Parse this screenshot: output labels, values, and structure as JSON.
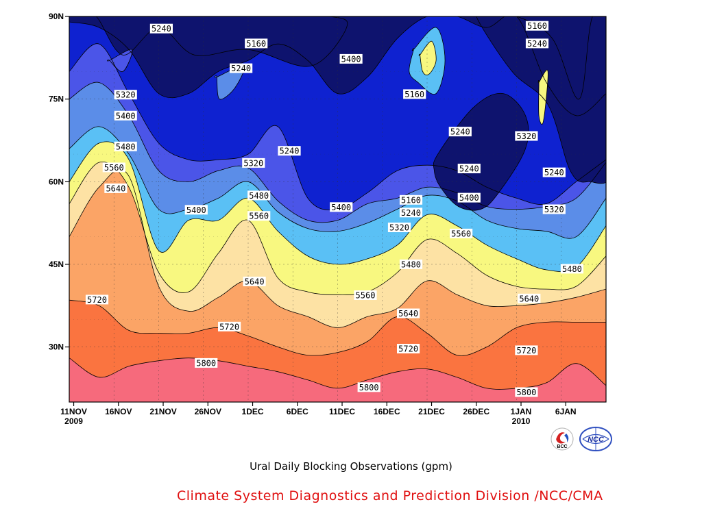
{
  "chart_data": {
    "type": "heatmap",
    "subtype": "filled-contour",
    "title": "Ural Daily Blocking Observations (gpm)",
    "credit": "Climate System Diagnostics and Prediction Division /NCC/CMA",
    "credit_color": "#e01010",
    "x_ticks": [
      {
        "label": "11NOV",
        "sub": "2009"
      },
      {
        "label": "16NOV",
        "sub": ""
      },
      {
        "label": "21NOV",
        "sub": ""
      },
      {
        "label": "26NOV",
        "sub": ""
      },
      {
        "label": "1DEC",
        "sub": ""
      },
      {
        "label": "6DEC",
        "sub": ""
      },
      {
        "label": "11DEC",
        "sub": ""
      },
      {
        "label": "16DEC",
        "sub": ""
      },
      {
        "label": "21DEC",
        "sub": ""
      },
      {
        "label": "26DEC",
        "sub": ""
      },
      {
        "label": "1JAN",
        "sub": "2010"
      },
      {
        "label": "6JAN",
        "sub": ""
      }
    ],
    "y_ticks": [
      {
        "lat": 90,
        "label": "90N"
      },
      {
        "lat": 75,
        "label": "75N"
      },
      {
        "lat": 60,
        "label": "60N"
      },
      {
        "lat": 45,
        "label": "45N"
      },
      {
        "lat": 30,
        "label": "30N"
      }
    ],
    "xlim_days": [
      0,
      60
    ],
    "ylim_lat": [
      20,
      90
    ],
    "grid": true,
    "levels": [
      5160,
      5240,
      5320,
      5400,
      5480,
      5560,
      5640,
      5720,
      5800
    ],
    "colors": [
      "#0e136e",
      "#0f22d0",
      "#4b55e8",
      "#5b8de8",
      "#5ac0f5",
      "#f8f880",
      "#fde2a4",
      "#fba466",
      "#fa7440",
      "#f66a7c"
    ],
    "bands": [
      {
        "upper": 5800,
        "lats": [
          28,
          24.5,
          26.5,
          27.5,
          28,
          27.5,
          26.5,
          25.5,
          24,
          22.5,
          24,
          25.5,
          26,
          24.5,
          22.5,
          22.5,
          23.5,
          27,
          23
        ]
      },
      {
        "upper": 5720,
        "lats": [
          38.5,
          37.5,
          33,
          32.5,
          32.5,
          33.5,
          32,
          30,
          28.5,
          29,
          31,
          35.5,
          32.5,
          28.5,
          30,
          33.5,
          34.5,
          34.5,
          34.5
        ]
      },
      {
        "upper": 5640,
        "lats": [
          50,
          59,
          61,
          41,
          36.5,
          39,
          42,
          37.5,
          35.5,
          33.5,
          35.5,
          37,
          42,
          39.5,
          37.5,
          37.5,
          38,
          39,
          40.5
        ]
      },
      {
        "upper": 5560,
        "lats": [
          56,
          63.5,
          59,
          43.5,
          40,
          47,
          53,
          42.5,
          40,
          39.5,
          40,
          43.5,
          49.5,
          47,
          43,
          41,
          40.5,
          41,
          46.5
        ]
      },
      {
        "upper": 5480,
        "lats": [
          60,
          67,
          64,
          47.5,
          53,
          53,
          57,
          51,
          46.5,
          45,
          46,
          48.5,
          54,
          52,
          48.5,
          46,
          44,
          44.5,
          52
        ]
      },
      {
        "upper": 5400,
        "lats": [
          66,
          70,
          65,
          55,
          55,
          57,
          60,
          54.5,
          51.5,
          51,
          52.5,
          55,
          57.5,
          56.5,
          53,
          51.5,
          51,
          50,
          57
        ]
      },
      {
        "upper": 5320,
        "lats": [
          75,
          78,
          72,
          62,
          60,
          62,
          62.5,
          56.5,
          53,
          53,
          56,
          57,
          59,
          58,
          55.5,
          55,
          55.5,
          57,
          63.5
        ]
      },
      {
        "upper": 5240,
        "lats": [
          80,
          85,
          76,
          67,
          64,
          64,
          65,
          70,
          57,
          55,
          58,
          62,
          63,
          62,
          59,
          57,
          56,
          60,
          64
        ]
      },
      {
        "upper": 5160,
        "lats": [
          89,
          88,
          84,
          76,
          76,
          80,
          82,
          85,
          82,
          76,
          79,
          86,
          90,
          90,
          88,
          90,
          78,
          72,
          76
        ]
      }
    ],
    "blobs": [
      {
        "value": 5160,
        "days": [
          41.2,
          45.2,
          48.5,
          51,
          51,
          48,
          46,
          43.5,
          41.5,
          40.8
        ],
        "lats": [
          65,
          73.5,
          76,
          72,
          66,
          58,
          55,
          55.5,
          59,
          62
        ]
      },
      {
        "value": 5160,
        "days": [
          45.5,
          49.5,
          53.5,
          56,
          58,
          61,
          61,
          58.5,
          57,
          54,
          50,
          47
        ],
        "lats": [
          90,
          80,
          74,
          62,
          60,
          63,
          90,
          90,
          75,
          86,
          90,
          90
        ]
      },
      {
        "value": 5160,
        "days": [
          3,
          6,
          10,
          14,
          20,
          27,
          31,
          29,
          20,
          13,
          6,
          1
        ],
        "lats": [
          90,
          83,
          88,
          83,
          84,
          81,
          88,
          90,
          90,
          90,
          90,
          90
        ]
      },
      {
        "value": 5400,
        "days": [
          38.5,
          41,
          42,
          41,
          39,
          38,
          38.5
        ],
        "lats": [
          84,
          88,
          82,
          76,
          78,
          80,
          84
        ]
      },
      {
        "value": 5480,
        "days": [
          39.2,
          40.5,
          41,
          40.2,
          39.5,
          39.2
        ],
        "lats": [
          83,
          85.5,
          82,
          79.5,
          80,
          83
        ]
      },
      {
        "value": 5320,
        "days": [
          16.5,
          19.5,
          18.5,
          16.8,
          16.5
        ],
        "lats": [
          79,
          81,
          77,
          75,
          79
        ]
      },
      {
        "value": 5480,
        "days": [
          52.5,
          53.5,
          53,
          52.5,
          52.5
        ],
        "lats": [
          78,
          80,
          71,
          72,
          78
        ]
      },
      {
        "value": 5240,
        "days": [
          4.5,
          7,
          6,
          4.5
        ],
        "lats": [
          82,
          84,
          80,
          82
        ]
      }
    ],
    "contour_labels": [
      {
        "value": "5240",
        "day": 10.3,
        "lat": 87.8
      },
      {
        "value": "5160",
        "day": 20.9,
        "lat": 85.1
      },
      {
        "value": "5240",
        "day": 19.2,
        "lat": 80.6
      },
      {
        "value": "5400",
        "day": 31.5,
        "lat": 82.3
      },
      {
        "value": "5160",
        "day": 38.6,
        "lat": 75.9
      },
      {
        "value": "5240",
        "day": 43.7,
        "lat": 69.1
      },
      {
        "value": "5160",
        "day": 52.3,
        "lat": 88.3
      },
      {
        "value": "5240",
        "day": 52.3,
        "lat": 85.1
      },
      {
        "value": "5320",
        "day": 51.1,
        "lat": 68.3
      },
      {
        "value": "5320",
        "day": 6.3,
        "lat": 75.8
      },
      {
        "value": "5400",
        "day": 6.3,
        "lat": 72.0
      },
      {
        "value": "5480",
        "day": 6.3,
        "lat": 66.4
      },
      {
        "value": "5560",
        "day": 5.0,
        "lat": 62.6
      },
      {
        "value": "5640",
        "day": 5.2,
        "lat": 58.8
      },
      {
        "value": "5240",
        "day": 24.6,
        "lat": 65.6
      },
      {
        "value": "5320",
        "day": 20.6,
        "lat": 63.4
      },
      {
        "value": "5400",
        "day": 14.2,
        "lat": 54.9
      },
      {
        "value": "5480",
        "day": 21.2,
        "lat": 57.5
      },
      {
        "value": "5560",
        "day": 21.2,
        "lat": 53.8
      },
      {
        "value": "5400",
        "day": 30.4,
        "lat": 55.4
      },
      {
        "value": "5240",
        "day": 44.7,
        "lat": 62.4
      },
      {
        "value": "5240",
        "day": 54.2,
        "lat": 61.7
      },
      {
        "value": "5400",
        "day": 44.7,
        "lat": 57.1
      },
      {
        "value": "5320",
        "day": 54.2,
        "lat": 55.0
      },
      {
        "value": "5160",
        "day": 38.2,
        "lat": 56.7
      },
      {
        "value": "5240",
        "day": 38.2,
        "lat": 54.4
      },
      {
        "value": "5320",
        "day": 36.9,
        "lat": 51.7
      },
      {
        "value": "5480",
        "day": 38.2,
        "lat": 45.0
      },
      {
        "value": "5560",
        "day": 43.8,
        "lat": 50.6
      },
      {
        "value": "5480",
        "day": 56.2,
        "lat": 44.2
      },
      {
        "value": "5640",
        "day": 20.7,
        "lat": 41.9
      },
      {
        "value": "5560",
        "day": 33.1,
        "lat": 39.4
      },
      {
        "value": "5640",
        "day": 37.9,
        "lat": 36.1
      },
      {
        "value": "5640",
        "day": 51.4,
        "lat": 38.8
      },
      {
        "value": "5720",
        "day": 3.1,
        "lat": 38.6
      },
      {
        "value": "5720",
        "day": 17.9,
        "lat": 33.7
      },
      {
        "value": "5720",
        "day": 37.9,
        "lat": 29.7
      },
      {
        "value": "5720",
        "day": 51.1,
        "lat": 29.4
      },
      {
        "value": "5800",
        "day": 15.3,
        "lat": 27.1
      },
      {
        "value": "5800",
        "day": 33.5,
        "lat": 22.7
      },
      {
        "value": "5800",
        "day": 51.1,
        "lat": 21.8
      }
    ]
  }
}
